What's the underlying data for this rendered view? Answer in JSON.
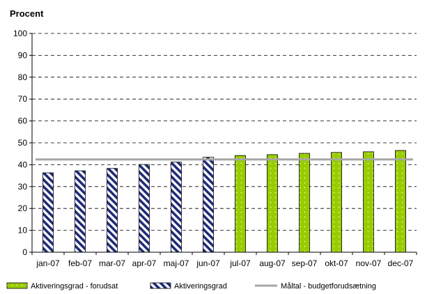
{
  "chart_data": {
    "type": "bar",
    "ylabel": "Procent",
    "ylim": [
      0,
      100
    ],
    "yticks": [
      0,
      10,
      20,
      30,
      40,
      50,
      60,
      70,
      80,
      90,
      100
    ],
    "grid": true,
    "categories": [
      "jan-07",
      "feb-07",
      "mar-07",
      "apr-07",
      "maj-07",
      "jun-07",
      "jul-07",
      "aug-07",
      "sep-07",
      "okt-07",
      "nov-07",
      "dec-07"
    ],
    "series": [
      {
        "name": "Aktiveringsgrad - forudsat",
        "kind": "bar",
        "color": "#99CC00",
        "values": [
          null,
          null,
          null,
          null,
          null,
          null,
          44.2,
          44.6,
          45.2,
          45.6,
          45.9,
          46.5
        ]
      },
      {
        "name": "Aktiveringsgrad",
        "kind": "bar",
        "pattern": "diagonal-stripes",
        "color": "#1F2A7A",
        "values": [
          36.3,
          37.2,
          38.3,
          40.1,
          41.2,
          43.4,
          null,
          null,
          null,
          null,
          null,
          null
        ]
      },
      {
        "name": "Måltal - budgetforudsætning",
        "kind": "line",
        "color": "#A6A6A6",
        "values": [
          42.4,
          42.4,
          42.4,
          42.4,
          42.4,
          42.4,
          42.4,
          42.4,
          42.4,
          42.4,
          42.4,
          42.4
        ]
      }
    ],
    "legend": {
      "placement": "bottom"
    }
  }
}
